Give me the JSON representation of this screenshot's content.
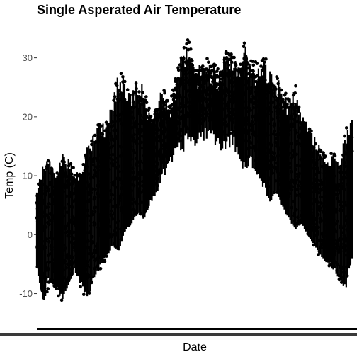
{
  "chart_data": {
    "type": "scatter",
    "title": "Single Asperated Air Temperature",
    "xlabel": "Date",
    "ylabel": "Temp (C)",
    "ylim": [
      -14.5,
      35
    ],
    "yticks": [
      30,
      20,
      10,
      0,
      -10
    ],
    "ytick_labels": [
      "30",
      "20",
      "10",
      "0",
      "-10"
    ],
    "xticks": [],
    "grid": false,
    "legend": "none",
    "point_color": "#000000",
    "series": [
      {
        "x": [
          0,
          2,
          4,
          6,
          8,
          10,
          12,
          14,
          16,
          18,
          20,
          22,
          24,
          26,
          28,
          30,
          32,
          34,
          36,
          38,
          40,
          42,
          44,
          46,
          48,
          50,
          52,
          54,
          56,
          58,
          60,
          62,
          64,
          66,
          68,
          70,
          72,
          74,
          76,
          78,
          80,
          82,
          84,
          86,
          88,
          90,
          92,
          94,
          96,
          98,
          100
        ],
        "y_min": [
          -6,
          -12,
          -8,
          -10,
          -12,
          -9,
          -6,
          -9,
          -12,
          -8,
          -6,
          -4,
          -2,
          -3,
          1,
          2,
          4,
          3,
          6,
          8,
          11,
          13,
          15,
          16,
          18,
          17,
          18,
          19,
          18,
          17,
          16,
          18,
          15,
          12,
          14,
          11,
          9,
          6,
          8,
          5,
          3,
          1,
          2,
          0,
          -2,
          -4,
          -5,
          -6,
          -8,
          -10,
          -4
        ],
        "y_max": [
          8,
          12,
          13,
          10,
          14,
          13,
          11,
          10,
          15,
          17,
          20,
          19,
          23,
          28,
          26,
          24,
          27,
          25,
          21,
          23,
          25,
          22,
          27,
          31,
          34,
          28,
          29,
          30,
          29,
          28,
          32,
          31,
          29,
          33,
          30,
          29,
          31,
          28,
          27,
          25,
          23,
          26,
          21,
          19,
          17,
          15,
          13,
          14,
          12,
          18,
          20
        ]
      }
    ]
  }
}
